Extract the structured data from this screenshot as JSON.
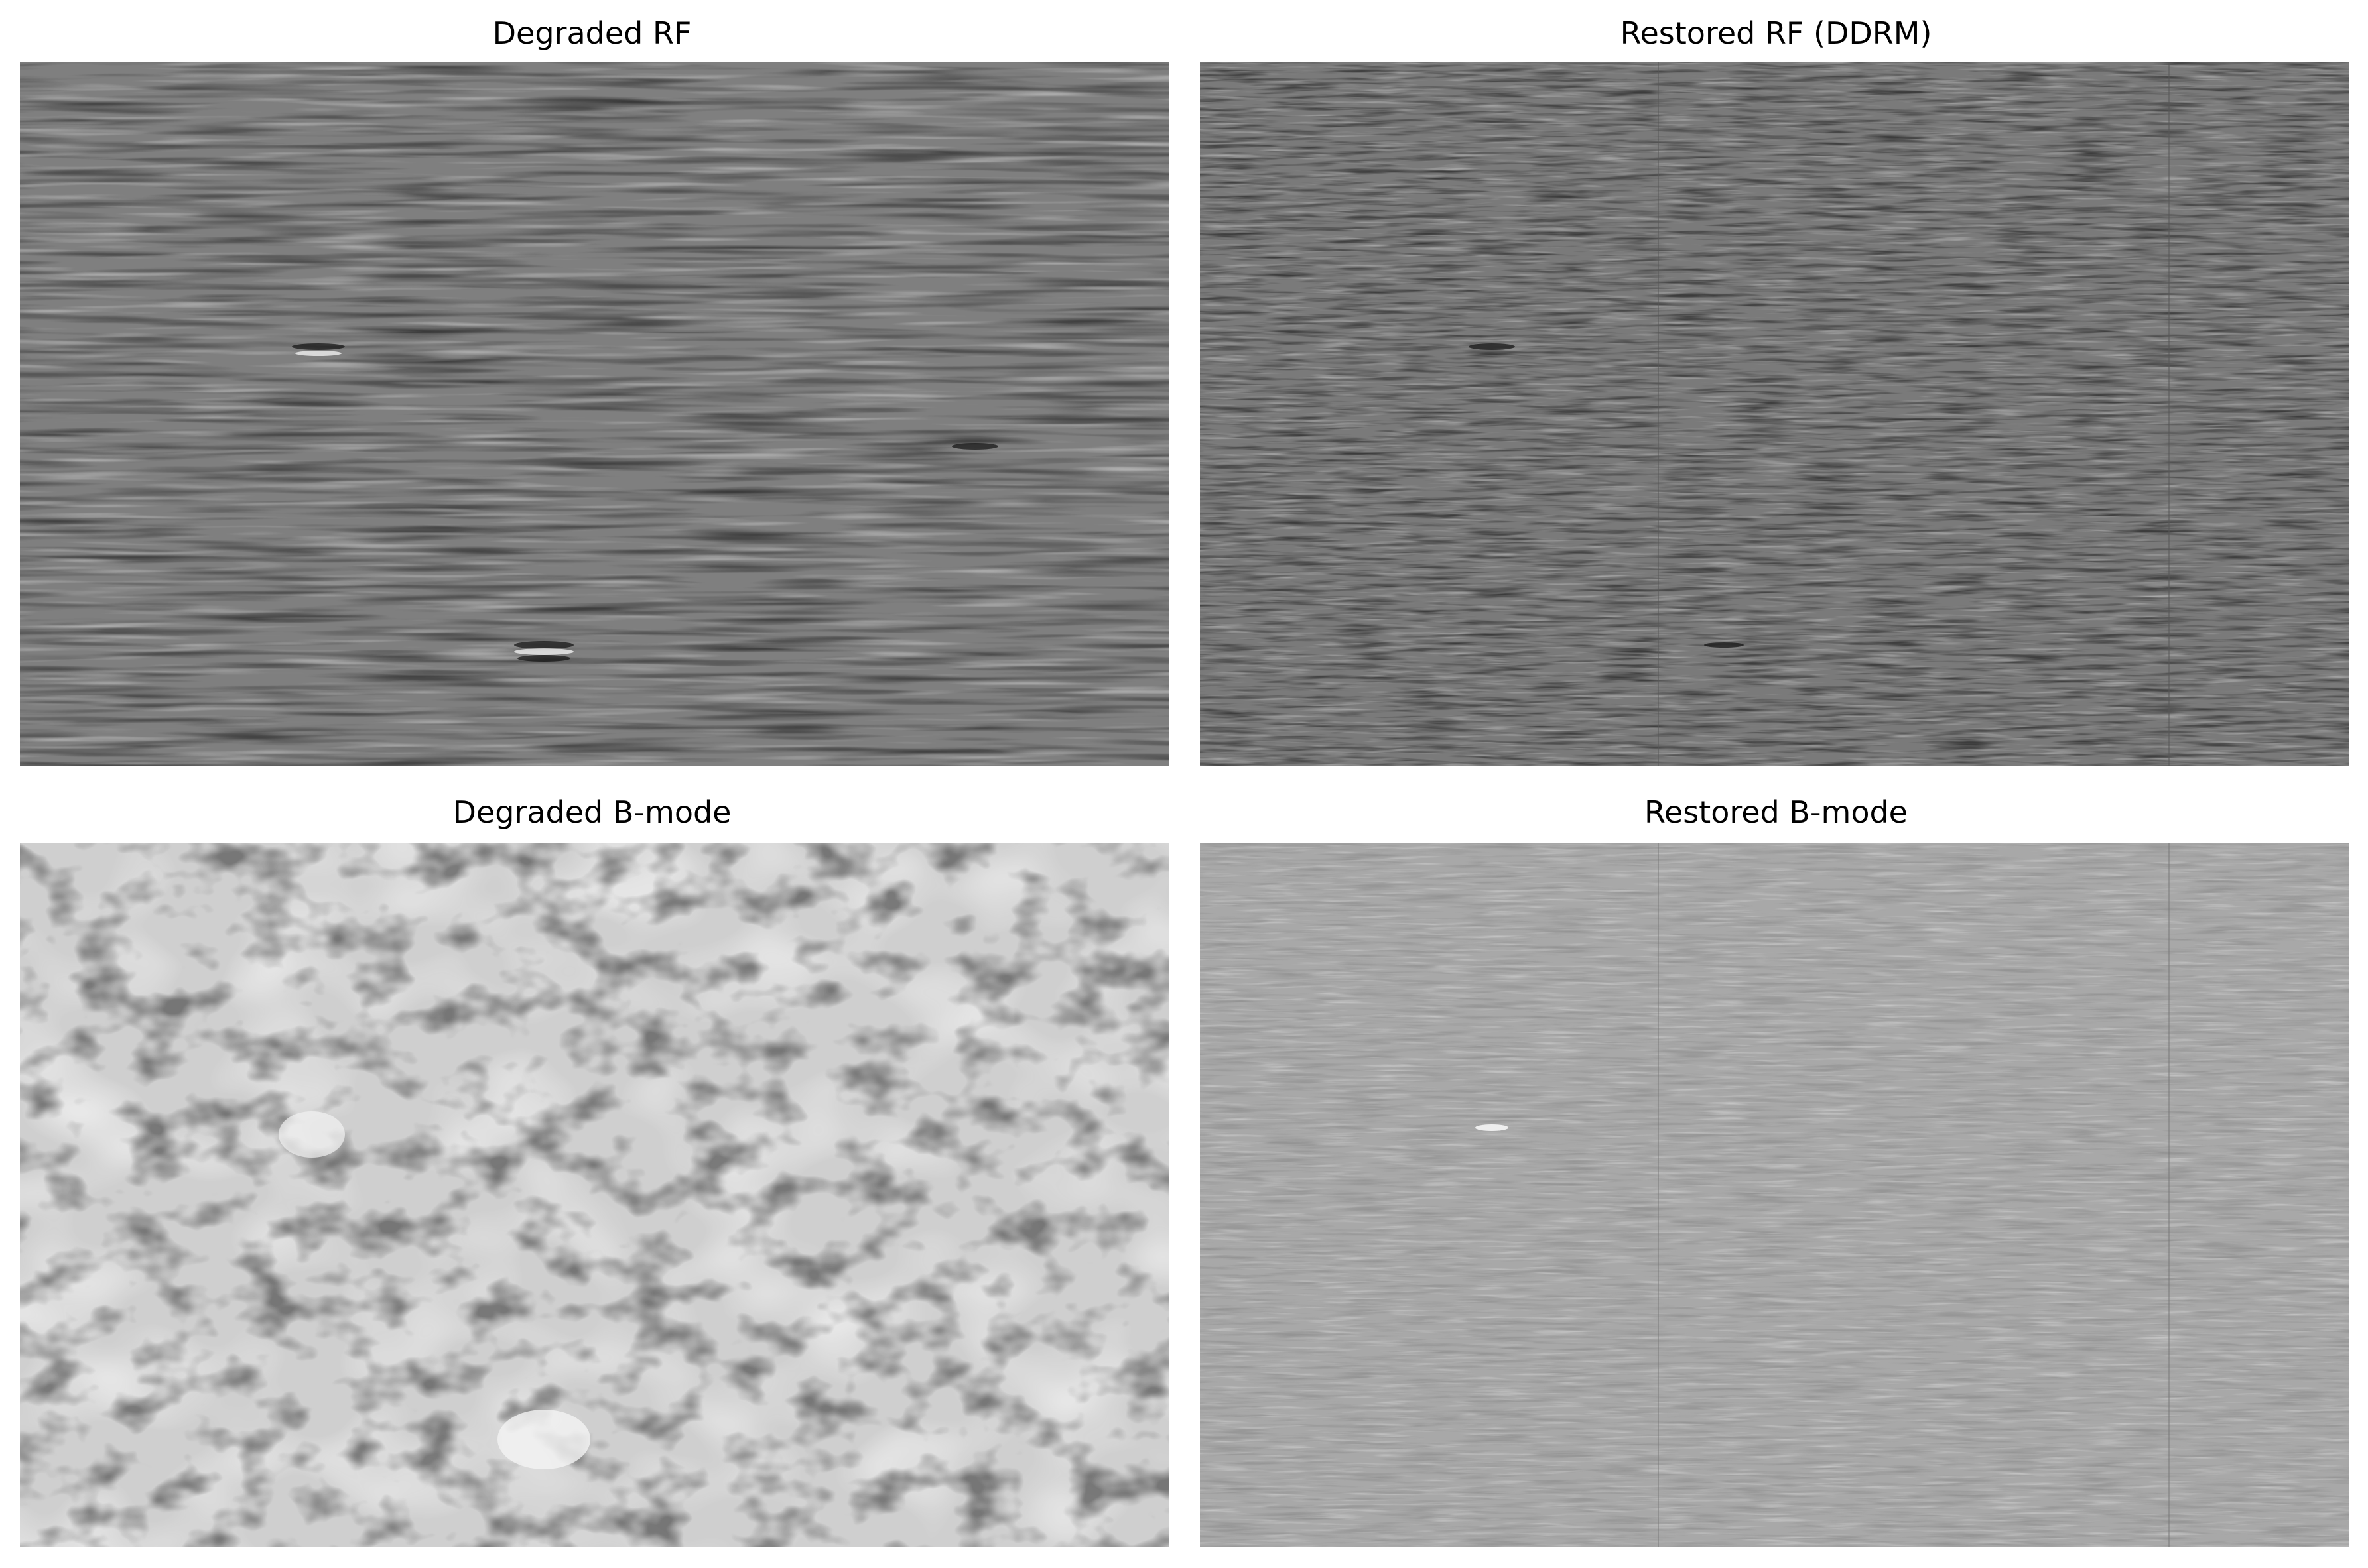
{
  "panels": [
    {
      "id": "degraded-rf",
      "title": "Degraded RF",
      "base_color": "#7f7f7f",
      "texture": "rf-stripes"
    },
    {
      "id": "restored-rf",
      "title": "Restored RF (DDRM)",
      "base_color": "#7a7a7a",
      "texture": "rf-fine-stripes"
    },
    {
      "id": "degraded-bmode",
      "title": "Degraded B-mode",
      "base_color": "#d4d4d4",
      "texture": "speckle"
    },
    {
      "id": "restored-bmode",
      "title": "Restored B-mode",
      "base_color": "#a8a8a8",
      "texture": "bmode-fine-stripes"
    }
  ]
}
